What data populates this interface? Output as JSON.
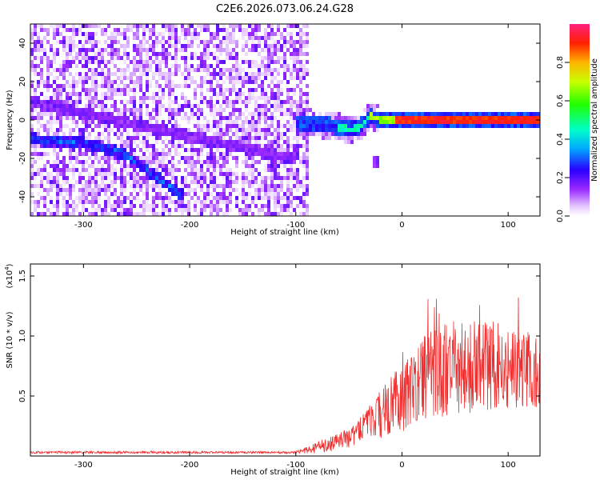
{
  "title": "C2E6.2026.073.06.24.G28",
  "chart_data": [
    {
      "type": "heatmap",
      "panel": "spectrogram",
      "xlabel": "Height of straight line (km)",
      "ylabel": "Frequency (Hz)",
      "xlim": [
        -350,
        130
      ],
      "ylim": [
        -50,
        50
      ],
      "xticks": [
        -300,
        -200,
        -100,
        0,
        100
      ],
      "xtick_labels": [
        "-300",
        "-200",
        "-100",
        "0",
        "100"
      ],
      "yticks": [
        40,
        20,
        0,
        -20,
        -40
      ],
      "ytick_labels": [
        "40",
        "20",
        "0",
        "-20",
        "-40"
      ],
      "noise_region_x": [
        -350,
        -88
      ],
      "ridge_a_x": [
        -350,
        -300,
        -260,
        -230,
        -205
      ],
      "ridge_a_y": [
        -10,
        -12,
        -18,
        -30,
        -40
      ],
      "main_track_x": [
        -100,
        -80,
        -65,
        -50,
        -40,
        -30,
        -20,
        0,
        50,
        100,
        130
      ],
      "main_track_y": [
        -1,
        -2,
        -3,
        -5,
        -4,
        2,
        0,
        0,
        0,
        0,
        0
      ],
      "colorbar": {
        "label": "Normalized spectral amplitude",
        "range": [
          0,
          1
        ],
        "ticks": [
          0.0,
          0.2,
          0.4,
          0.6,
          0.8
        ],
        "tick_labels": [
          "0.0",
          "0.2",
          "0.4",
          "0.6",
          "0.8"
        ]
      }
    },
    {
      "type": "line",
      "panel": "snr",
      "xlabel": "Height of straight line (km)",
      "ylabel": "SNR (10 * v/v)",
      "scale_label": "(x10",
      "scale_exp": "4",
      "scale_close": ")",
      "xlim": [
        -350,
        130
      ],
      "ylim": [
        0,
        1.6
      ],
      "xticks": [
        -300,
        -200,
        -100,
        0,
        100
      ],
      "xtick_labels": [
        "-300",
        "-200",
        "-100",
        "0",
        "100"
      ],
      "yticks": [
        0.5,
        1.0,
        1.5
      ],
      "ytick_labels": [
        "0.5",
        "1.0",
        "1.5"
      ],
      "color": "#f03030",
      "envelope_x": [
        -350,
        -100,
        -90,
        -75,
        -50,
        -35,
        -20,
        0,
        20,
        40,
        60,
        80,
        100,
        130
      ],
      "envelope_mean": [
        0.03,
        0.03,
        0.05,
        0.08,
        0.15,
        0.25,
        0.35,
        0.5,
        0.65,
        0.72,
        0.75,
        0.76,
        0.74,
        0.7
      ],
      "envelope_spread": [
        0.01,
        0.01,
        0.03,
        0.06,
        0.08,
        0.12,
        0.2,
        0.3,
        0.35,
        0.4,
        0.4,
        0.38,
        0.35,
        0.3
      ]
    }
  ]
}
